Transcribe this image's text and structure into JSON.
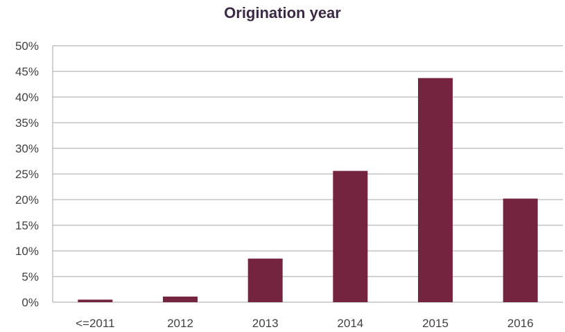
{
  "chart_data": {
    "type": "bar",
    "title": "Origination year",
    "xlabel": "",
    "ylabel": "",
    "categories": [
      "<=2011",
      "2012",
      "2013",
      "2014",
      "2015",
      "2016"
    ],
    "values": [
      0.5,
      1.1,
      8.5,
      25.6,
      43.7,
      20.2
    ],
    "ylim": [
      0,
      50
    ],
    "yticks": [
      0,
      5,
      10,
      15,
      20,
      25,
      30,
      35,
      40,
      45,
      50
    ],
    "ytick_labels": [
      "0%",
      "5%",
      "10%",
      "15%",
      "20%",
      "25%",
      "30%",
      "35%",
      "40%",
      "45%",
      "50%"
    ],
    "grid": true,
    "legend": "none",
    "bar_color": "#74243f",
    "grid_color": "#a6a6a6"
  }
}
